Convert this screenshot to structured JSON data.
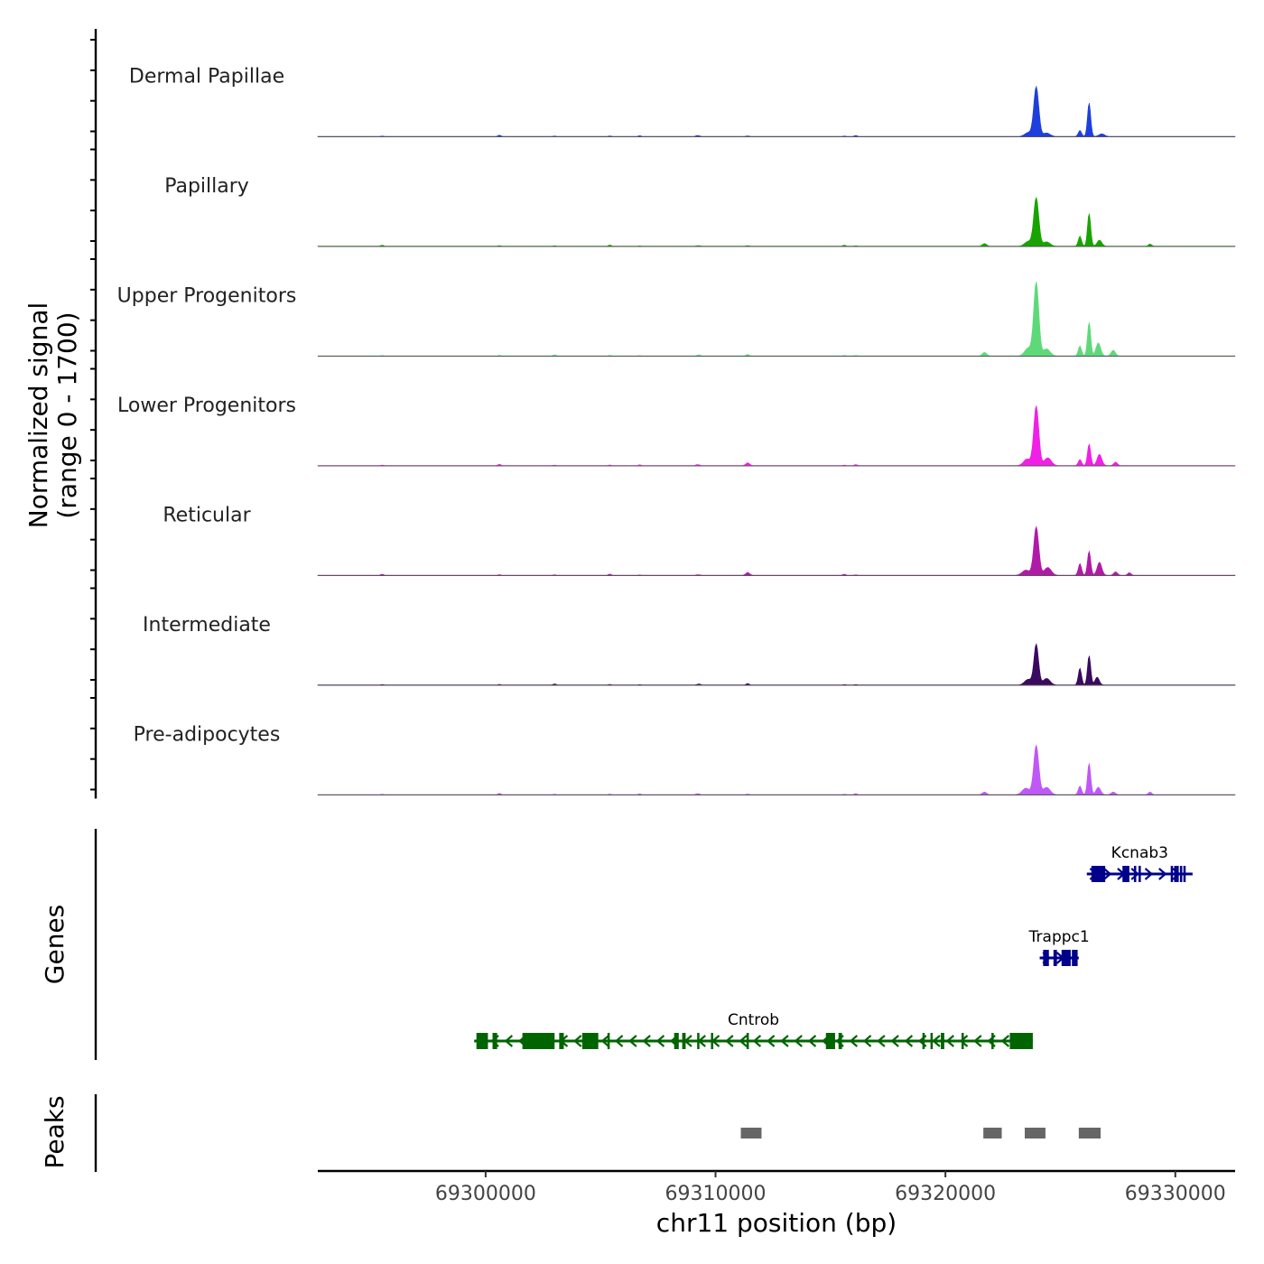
{
  "chart_data": {
    "type": "area",
    "title": "",
    "ylabel_line1": "Normalized signal",
    "ylabel_line2": "(range 0 - 1700)",
    "ylim": [
      0,
      1700
    ],
    "xlabel": "chr11 position (bp)",
    "xlim": [
      69292700,
      69332600
    ],
    "x_ticks": [
      69300000,
      69310000,
      69320000,
      69330000
    ],
    "x_tick_labels": [
      "69300000",
      "69310000",
      "69320000",
      "69330000"
    ],
    "tracks": [
      {
        "name": "Dermal Papillae",
        "color": "#1f3fdc",
        "peaks": [
          [
            69323950,
            1150,
            110
          ],
          [
            69326250,
            780,
            70
          ],
          [
            69323600,
            90,
            150
          ],
          [
            69324400,
            80,
            150
          ],
          [
            69325850,
            140,
            70
          ],
          [
            69326800,
            60,
            120
          ]
        ]
      },
      {
        "name": "Papillary",
        "color": "#18a400",
        "peaks": [
          [
            69323950,
            1120,
            110
          ],
          [
            69326250,
            760,
            70
          ],
          [
            69321700,
            60,
            90
          ],
          [
            69323600,
            110,
            150
          ],
          [
            69324400,
            100,
            150
          ],
          [
            69325850,
            230,
            70
          ],
          [
            69326700,
            140,
            100
          ],
          [
            69328900,
            50,
            70
          ]
        ]
      },
      {
        "name": "Upper Progenitors",
        "color": "#5ed97a",
        "peaks": [
          [
            69323950,
            1700,
            110
          ],
          [
            69326250,
            780,
            70
          ],
          [
            69321700,
            80,
            90
          ],
          [
            69323600,
            180,
            150
          ],
          [
            69324400,
            160,
            150
          ],
          [
            69325850,
            230,
            70
          ],
          [
            69326650,
            300,
            100
          ],
          [
            69327300,
            130,
            90
          ]
        ]
      },
      {
        "name": "Lower Progenitors",
        "color": "#f020e6",
        "peaks": [
          [
            69323950,
            1380,
            110
          ],
          [
            69326250,
            500,
            70
          ],
          [
            69311400,
            50,
            90
          ],
          [
            69323550,
            150,
            150
          ],
          [
            69324450,
            180,
            150
          ],
          [
            69325850,
            140,
            70
          ],
          [
            69326700,
            260,
            100
          ],
          [
            69327400,
            80,
            80
          ]
        ]
      },
      {
        "name": "Reticular",
        "color": "#b11aa7",
        "peaks": [
          [
            69323950,
            1120,
            110
          ],
          [
            69326250,
            560,
            70
          ],
          [
            69311400,
            50,
            90
          ],
          [
            69323500,
            120,
            160
          ],
          [
            69324450,
            180,
            150
          ],
          [
            69325850,
            270,
            70
          ],
          [
            69326700,
            300,
            100
          ],
          [
            69327400,
            80,
            80
          ],
          [
            69328000,
            60,
            70
          ]
        ]
      },
      {
        "name": "Intermediate",
        "color": "#3a0a5e",
        "peaks": [
          [
            69323950,
            940,
            100
          ],
          [
            69326250,
            680,
            70
          ],
          [
            69323600,
            130,
            150
          ],
          [
            69324400,
            150,
            150
          ],
          [
            69325850,
            390,
            70
          ],
          [
            69326600,
            180,
            90
          ]
        ]
      },
      {
        "name": "Pre-adipocytes",
        "color": "#be58f6",
        "peaks": [
          [
            69323950,
            1140,
            110
          ],
          [
            69326250,
            730,
            70
          ],
          [
            69321700,
            60,
            90
          ],
          [
            69323500,
            150,
            160
          ],
          [
            69324400,
            170,
            150
          ],
          [
            69325850,
            200,
            70
          ],
          [
            69326650,
            170,
            100
          ],
          [
            69327300,
            60,
            90
          ],
          [
            69328900,
            60,
            70
          ]
        ]
      }
    ],
    "genes_label": "Genes",
    "genes": [
      {
        "name": "Kcnab3",
        "color": "#00008b",
        "start": 69326150,
        "end": 69330750,
        "strand": "+",
        "exons": [
          [
            69326350,
            69326950
          ],
          [
            69327700,
            69328000
          ],
          [
            69328200,
            69328300
          ],
          [
            69328400,
            69328500
          ],
          [
            69329800,
            69329850
          ],
          [
            69329950,
            69330000
          ],
          [
            69330050,
            69330100
          ],
          [
            69330200,
            69330300
          ],
          [
            69330350,
            69330450
          ]
        ]
      },
      {
        "name": "Trappc1",
        "color": "#00008b",
        "start": 69324100,
        "end": 69325800,
        "strand": "+",
        "exons": [
          [
            69324250,
            69324500
          ],
          [
            69324700,
            69324850
          ],
          [
            69325050,
            69325450
          ],
          [
            69325500,
            69325750
          ]
        ]
      },
      {
        "name": "Cntrob",
        "color": "#006400",
        "start": 69299500,
        "end": 69323800,
        "strand": "-",
        "exons": [
          [
            69299600,
            69300100
          ],
          [
            69300300,
            69300500
          ],
          [
            69301600,
            69303000
          ],
          [
            69303200,
            69303400
          ],
          [
            69304200,
            69304900
          ],
          [
            69305300,
            69305400
          ],
          [
            69308200,
            69308400
          ],
          [
            69308550,
            69308700
          ],
          [
            69309200,
            69309300
          ],
          [
            69309800,
            69309900
          ],
          [
            69311350,
            69311450
          ],
          [
            69314800,
            69315200
          ],
          [
            69315350,
            69315500
          ],
          [
            69319000,
            69319100
          ],
          [
            69319350,
            69319450
          ],
          [
            69319800,
            69319950
          ],
          [
            69320700,
            69320800
          ],
          [
            69322000,
            69322100
          ],
          [
            69322800,
            69323800
          ]
        ]
      }
    ],
    "peaks_label": "Peaks",
    "peak_regions": [
      [
        69311100,
        69312000
      ],
      [
        69321650,
        69322450
      ],
      [
        69323450,
        69324350
      ],
      [
        69325800,
        69326750
      ]
    ]
  }
}
